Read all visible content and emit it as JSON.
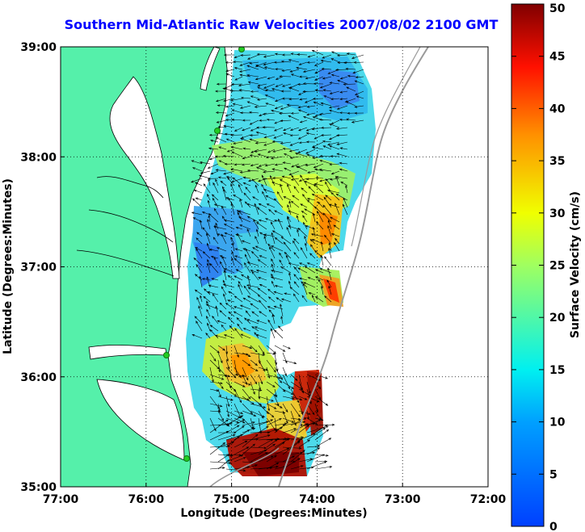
{
  "title": "Southern Mid-Atlantic Raw Velocities 2007/08/02 2100 GMT",
  "chart_data": {
    "type": "heatmap",
    "title": "Southern Mid-Atlantic Raw Velocities 2007/08/02 2100 GMT",
    "xlabel": "Longitude (Degrees:Minutes)",
    "ylabel": "Latitude (Degrees:Minutes)",
    "x_ticks": [
      "77:00",
      "76:00",
      "75:00",
      "74:00",
      "73:00",
      "72:00"
    ],
    "y_ticks": [
      "39:00",
      "38:00",
      "37:00",
      "36:00",
      "35:00"
    ],
    "xlim": [
      -77,
      -72
    ],
    "ylim": [
      35,
      39
    ],
    "grid": true,
    "colorbar": {
      "label": "Surface Velocity (cm/s)",
      "ticks": [
        "0",
        "5",
        "10",
        "15",
        "20",
        "25",
        "30",
        "35",
        "40",
        "45",
        "50"
      ],
      "range": [
        0,
        50
      ],
      "colormap": "jet"
    }
  },
  "colors": {
    "land": "#55f0aa",
    "title": "#0000ff",
    "coast": "#000000",
    "shelf_contour": "#9a9a9a",
    "station": "#22cc22"
  }
}
